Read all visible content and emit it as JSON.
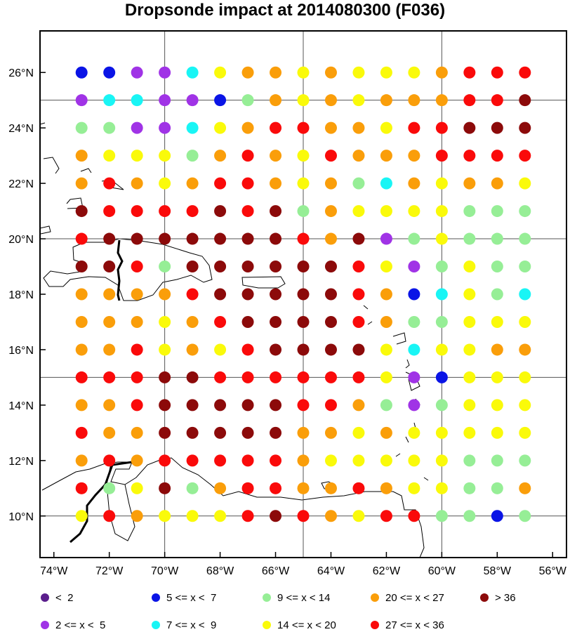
{
  "title": "Dropsonde impact at 2014080300 (F036)",
  "x_ticks": [
    "74°W",
    "72°W",
    "70°W",
    "68°W",
    "66°W",
    "64°W",
    "62°W",
    "60°W",
    "58°W",
    "56°W"
  ],
  "y_ticks": [
    "26°N",
    "24°N",
    "22°N",
    "20°N",
    "18°N",
    "16°N",
    "14°N",
    "12°N",
    "10°N"
  ],
  "legend": [
    {
      "label": "<  2",
      "color": "#5a1e8c"
    },
    {
      "label": "2 <= x <  5",
      "color": "#a033e6"
    },
    {
      "label": "5 <= x <  7",
      "color": "#0a14e6"
    },
    {
      "label": "7 <= x <  9",
      "color": "#19f5f5"
    },
    {
      "label": "9 <= x < 14",
      "color": "#96ee96"
    },
    {
      "label": "14 <= x < 20",
      "color": "#fafa0a"
    },
    {
      "label": "20 <= x < 27",
      "color": "#fa9e0a"
    },
    {
      "label": "27 <= x < 36",
      "color": "#fa0a0a"
    },
    {
      "label": "> 36",
      "color": "#8c0a0a"
    }
  ],
  "chart_data": {
    "type": "scatter",
    "x_label": "",
    "y_label": "",
    "xlim": [
      -74.5,
      -55.5
    ],
    "ylim": [
      8.5,
      27.5
    ],
    "grid": true,
    "grid_lon": [
      -70,
      -65,
      -60
    ],
    "grid_lat": [
      10,
      15,
      20,
      25
    ],
    "legend_placement": "bottom",
    "point_lon": [
      -73,
      -72,
      -71,
      -70,
      -69,
      -68,
      -67,
      -66,
      -65,
      -64,
      -63,
      -62,
      -61,
      -60,
      -59,
      -58,
      -57
    ],
    "point_lat": [
      26,
      25,
      24,
      23,
      22,
      21,
      20,
      19,
      18,
      17,
      16,
      15,
      14,
      13,
      12,
      11,
      10
    ],
    "category_rows": [
      [
        2,
        2,
        1,
        1,
        3,
        5,
        6,
        6,
        5,
        6,
        5,
        5,
        5,
        6,
        7,
        7,
        7
      ],
      [
        1,
        3,
        3,
        1,
        1,
        2,
        4,
        6,
        5,
        6,
        5,
        6,
        6,
        6,
        7,
        7,
        8
      ],
      [
        4,
        4,
        1,
        1,
        3,
        5,
        6,
        7,
        7,
        6,
        6,
        5,
        7,
        7,
        8,
        8,
        8
      ],
      [
        6,
        5,
        5,
        5,
        4,
        6,
        7,
        6,
        5,
        7,
        6,
        6,
        6,
        7,
        7,
        7,
        7
      ],
      [
        6,
        7,
        6,
        5,
        6,
        7,
        7,
        6,
        5,
        6,
        4,
        3,
        6,
        5,
        6,
        6,
        5
      ],
      [
        8,
        7,
        7,
        7,
        7,
        8,
        7,
        8,
        4,
        6,
        5,
        5,
        5,
        5,
        4,
        4,
        4
      ],
      [
        7,
        8,
        8,
        8,
        8,
        8,
        8,
        8,
        7,
        6,
        8,
        1,
        4,
        5,
        4,
        4,
        4
      ],
      [
        8,
        8,
        7,
        4,
        8,
        8,
        8,
        8,
        8,
        8,
        7,
        5,
        1,
        4,
        5,
        4,
        4
      ],
      [
        6,
        6,
        6,
        6,
        7,
        8,
        8,
        8,
        8,
        8,
        7,
        6,
        2,
        3,
        5,
        4,
        3
      ],
      [
        6,
        6,
        6,
        5,
        6,
        7,
        8,
        8,
        8,
        8,
        7,
        6,
        4,
        4,
        5,
        5,
        5
      ],
      [
        6,
        6,
        7,
        5,
        6,
        5,
        7,
        8,
        8,
        8,
        8,
        5,
        3,
        5,
        5,
        6,
        6
      ],
      [
        7,
        7,
        7,
        8,
        8,
        7,
        7,
        7,
        7,
        7,
        7,
        5,
        1,
        2,
        5,
        5,
        5
      ],
      [
        6,
        6,
        7,
        8,
        8,
        8,
        8,
        8,
        7,
        7,
        6,
        4,
        1,
        4,
        5,
        5,
        5
      ],
      [
        7,
        6,
        6,
        8,
        8,
        8,
        8,
        8,
        6,
        6,
        5,
        6,
        5,
        5,
        5,
        5,
        5
      ],
      [
        6,
        7,
        6,
        7,
        7,
        7,
        7,
        7,
        6,
        5,
        5,
        5,
        5,
        5,
        4,
        4,
        4
      ],
      [
        7,
        4,
        5,
        8,
        4,
        6,
        7,
        7,
        6,
        6,
        7,
        6,
        5,
        5,
        4,
        4,
        6
      ],
      [
        5,
        7,
        6,
        5,
        5,
        5,
        7,
        8,
        7,
        6,
        5,
        7,
        7,
        4,
        4,
        2,
        4
      ]
    ]
  }
}
